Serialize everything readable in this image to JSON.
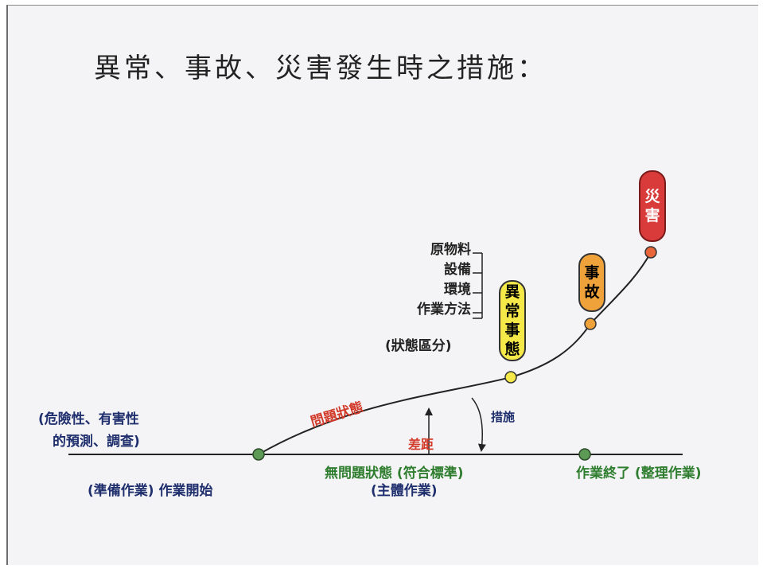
{
  "title": "異常、事故、災害發生時之措施：",
  "factors": {
    "items": [
      "原物料",
      "設備",
      "環境",
      "作業方法"
    ],
    "note": "(狀態區分)"
  },
  "stages": [
    {
      "chars": [
        "異",
        "常",
        "事",
        "態"
      ],
      "color": "#f5e94a"
    },
    {
      "chars": [
        "事",
        "故"
      ],
      "color": "#f0a23a"
    },
    {
      "chars": [
        "災",
        "害"
      ],
      "color": "#d93a3a"
    }
  ],
  "labels": {
    "prediction_line1": "(危險性、有害性",
    "prediction_line2": "的預測、調查)",
    "problem_state": "問題狀態",
    "measures": "措施",
    "gap": "差距",
    "no_problem_line1": "無問題狀態 (符合標準)",
    "no_problem_line2": "(主體作業)",
    "work_start": "(準備作業) 作業開始",
    "work_end": "作業終了 (整理作業)"
  },
  "colors": {
    "navy": "#1f2f6e",
    "green_dot": "#5c9a55",
    "red_text": "#d23a2a",
    "yellow": "#f5e94a",
    "orange": "#f0a23a",
    "red": "#d93a3a"
  }
}
